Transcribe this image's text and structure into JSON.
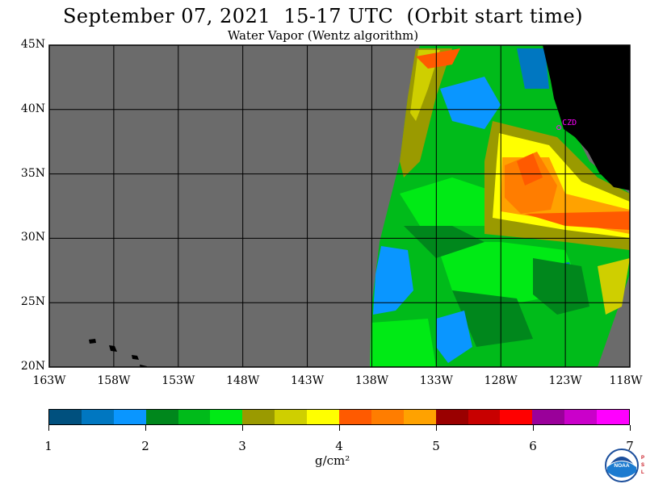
{
  "header": {
    "title": "September 07, 2021  15-17 UTC  (Orbit start time)",
    "subtitle": "Water Vapor (Wentz algorithm)"
  },
  "map": {
    "lat_labels": [
      "45N",
      "40N",
      "35N",
      "30N",
      "25N",
      "20N"
    ],
    "lat_values": [
      45,
      40,
      35,
      30,
      25,
      20
    ],
    "lon_labels": [
      "163W",
      "158W",
      "153W",
      "148W",
      "143W",
      "138W",
      "133W",
      "128W",
      "123W",
      "118W"
    ],
    "lon_values": [
      -163,
      -158,
      -153,
      -148,
      -143,
      -138,
      -133,
      -128,
      -123,
      -118
    ],
    "station_label": "CZD",
    "station_coord": {
      "lon": -123.5,
      "lat": 38.6
    },
    "colors": {
      "no_data": "#6b6b6b",
      "land": "#000000",
      "grid": "#000000",
      "station": "#ff00ff"
    }
  },
  "colorbar": {
    "colors": [
      "#00507e",
      "#0077c1",
      "#0a96ff",
      "#00871c",
      "#00bb1a",
      "#00ea15",
      "#9a9a00",
      "#cfcf00",
      "#ffff00",
      "#ff5a00",
      "#ff7d00",
      "#ffa200",
      "#9a0000",
      "#c80000",
      "#ff0000",
      "#9a009a",
      "#ca00ca",
      "#ff00ff"
    ],
    "tick_labels": [
      "1",
      "2",
      "3",
      "4",
      "5",
      "6",
      "7"
    ],
    "units": "g/cm²"
  },
  "logo": {
    "name": "NOAA",
    "side_text": "PSL"
  }
}
